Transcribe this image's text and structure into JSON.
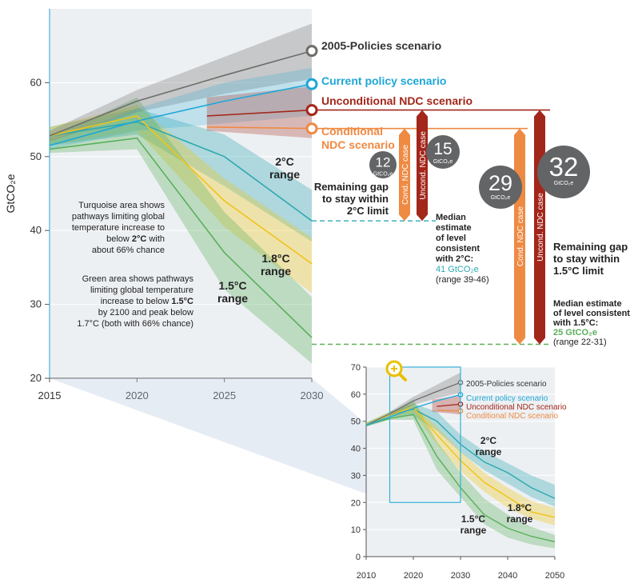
{
  "chart_data": [
    {
      "type": "area",
      "ylabel": "GtCO₂e",
      "xlim": [
        2015,
        2030
      ],
      "ylim": [
        20,
        70
      ],
      "x_ticks": [
        "2015",
        "2020",
        "2025",
        "2030"
      ],
      "y_ticks": [
        "20",
        "30",
        "40",
        "50",
        "60"
      ],
      "series": [
        {
          "name": "2005-Policies scenario",
          "x": [
            2015,
            2020,
            2025,
            2030
          ],
          "values": [
            52.8,
            57.5,
            61.0,
            64.3
          ],
          "band_low": [
            52.0,
            56.0,
            58.5,
            60.5
          ],
          "band_high": [
            53.5,
            59.0,
            63.5,
            68.0
          ],
          "color": "#6d6e6a"
        },
        {
          "name": "Current policy scenario",
          "x": [
            2015,
            2020,
            2025,
            2030
          ],
          "values": [
            51.5,
            54.8,
            57.5,
            59.8
          ],
          "band_low": [
            51.0,
            53.5,
            54.5,
            55.5
          ],
          "band_high": [
            52.0,
            56.5,
            60.0,
            62.0
          ],
          "color": "#1ea7d8"
        },
        {
          "name": "Unconditional NDC scenario",
          "x": [
            2024,
            2030
          ],
          "values": [
            55.5,
            56.3
          ],
          "band_low": [
            53.5,
            52.5
          ],
          "band_high": [
            58.0,
            59.5
          ],
          "color": "#a3261a"
        },
        {
          "name": "Conditional NDC scenario",
          "x": [
            2024,
            2030
          ],
          "values": [
            54.0,
            53.8
          ],
          "color": "#ef8a43"
        }
      ],
      "pathways": [
        {
          "name": "2°C range",
          "x": [
            2015,
            2020,
            2025,
            2030
          ],
          "values": [
            52.8,
            54.7,
            50.0,
            41.3
          ],
          "band_low": [
            51.5,
            53.0,
            46.0,
            38.5
          ],
          "band_high": [
            54.0,
            56.5,
            53.0,
            45.5
          ],
          "color": "#2ea8b0"
        },
        {
          "name": "1.8°C range",
          "x": [
            2015,
            2020,
            2025,
            2030
          ],
          "values": [
            52.8,
            55.5,
            44.0,
            35.5
          ],
          "band_low": [
            51.5,
            53.5,
            40.5,
            31.5
          ],
          "band_high": [
            54.0,
            57.0,
            47.0,
            39.0
          ],
          "color": "#f0c419"
        },
        {
          "name": "1.5°C range",
          "x": [
            2015,
            2020,
            2025,
            2030
          ],
          "values": [
            51.0,
            52.5,
            37.0,
            25.5
          ],
          "band_low": [
            50.5,
            51.0,
            32.0,
            22.0
          ],
          "band_high": [
            52.5,
            58.0,
            42.5,
            31.0
          ],
          "color": "#5aaf5b"
        }
      ],
      "annotations": {
        "two_c_range": "2°C\nrange",
        "one_eight_range": "1.8°C\nrange",
        "one_five_range": "1.5°C\nrange",
        "turquoise_note": [
          "Turquoise area shows",
          "pathways limiting global",
          "temperature increase to",
          "below ",
          "2°C",
          " with",
          "about 66% chance"
        ],
        "green_note": [
          "Green area shows pathways",
          "limiting global temperature",
          "increase to below ",
          "1.5°C",
          "by 2100 and peak below",
          "1.7°C (both with 66% chance)"
        ],
        "gap_2c": [
          "Remaining gap",
          "to stay within",
          "2°C limit"
        ],
        "gap_15c": [
          "Remaining gap",
          "to stay within",
          "1.5°C limit"
        ],
        "median_2c": [
          "Median",
          "estimate",
          "of level",
          "consistent",
          "with 2°C:",
          "41 GtCO₂e",
          "(range 39-46)"
        ],
        "median_15c": [
          "Median estimate",
          "of level consistent",
          "with 1.5°C:",
          "25 GtCO₂e",
          "(range 22-31)"
        ],
        "scenario_2005": "2005-Policies scenario",
        "scenario_current": "Current policy scenario",
        "scenario_uncond": "Unconditional NDC scenario",
        "scenario_cond": [
          "Conditional",
          "NDC scenario"
        ]
      },
      "gaps": [
        {
          "value": "12",
          "unit": "GtCO₂e",
          "bar": "Cond. NDC case",
          "limit": "2°C"
        },
        {
          "value": "15",
          "unit": "GtCO₂e",
          "bar": "Uncond. NDC case",
          "limit": "2°C"
        },
        {
          "value": "29",
          "unit": "GtCO₂e",
          "bar": "Cond. NDC case",
          "limit": "1.5°C"
        },
        {
          "value": "32",
          "unit": "GtCO₂e",
          "bar": "Uncond. NDC case",
          "limit": "1.5°C"
        }
      ],
      "colors": {
        "grey": "#6d6e6a",
        "current": "#1ea7d8",
        "uncond": "#a3261a",
        "cond": "#ef8a43",
        "two_c": "#2ea8b0",
        "one_eight": "#f0c419",
        "one_five": "#5aaf5b",
        "median_2c_text": "#2ea8b0",
        "median_15c_text": "#5aaf5b"
      }
    },
    {
      "type": "area",
      "xlim": [
        2010,
        2050
      ],
      "ylim": [
        0,
        70
      ],
      "x_ticks": [
        "2010",
        "2020",
        "2030",
        "2040",
        "2050"
      ],
      "y_ticks": [
        "0",
        "10",
        "20",
        "30",
        "40",
        "50",
        "60",
        "70"
      ],
      "series": [
        {
          "name": "2005-Policies scenario",
          "x": [
            2010,
            2015,
            2020,
            2025,
            2030
          ],
          "values": [
            48.5,
            52.8,
            57.5,
            61.0,
            64.3
          ]
        },
        {
          "name": "Current policy scenario",
          "x": [
            2010,
            2015,
            2020,
            2025,
            2030
          ],
          "values": [
            48.5,
            51.5,
            54.8,
            57.5,
            59.8
          ]
        },
        {
          "name": "Unconditional NDC scenario",
          "x": [
            2025,
            2030
          ],
          "values": [
            55.5,
            56.3
          ]
        },
        {
          "name": "Conditional NDC scenario",
          "x": [
            2025,
            2030
          ],
          "values": [
            54.0,
            53.8
          ]
        }
      ],
      "pathways": [
        {
          "name": "2°C range",
          "x": [
            2010,
            2015,
            2020,
            2025,
            2030,
            2035,
            2040,
            2045,
            2050
          ],
          "values": [
            48.5,
            52.5,
            54.5,
            50.0,
            41.5,
            35.0,
            31.0,
            25.5,
            21.5
          ],
          "band_low": [
            48.0,
            51.5,
            52.0,
            46.5,
            38.5,
            32.0,
            27.0,
            22.0,
            18.5
          ],
          "band_high": [
            49.5,
            53.5,
            56.5,
            53.5,
            45.0,
            39.0,
            34.5,
            30.0,
            26.5
          ]
        },
        {
          "name": "1.8°C range",
          "x": [
            2010,
            2015,
            2020,
            2025,
            2030,
            2035,
            2040,
            2045,
            2050
          ],
          "values": [
            48.5,
            52.5,
            55.0,
            45.0,
            35.5,
            27.5,
            22.0,
            16.5,
            14.5
          ],
          "band_low": [
            48.0,
            51.5,
            53.0,
            41.5,
            31.5,
            24.0,
            18.0,
            14.0,
            11.5
          ],
          "band_high": [
            49.5,
            53.5,
            56.5,
            48.0,
            39.0,
            31.0,
            25.5,
            20.5,
            18.0
          ]
        },
        {
          "name": "1.5°C range",
          "x": [
            2010,
            2015,
            2020,
            2025,
            2030,
            2035,
            2040,
            2045,
            2050
          ],
          "values": [
            48.5,
            51.0,
            52.5,
            37.0,
            25.5,
            15.5,
            10.5,
            7.5,
            5.5
          ],
          "band_low": [
            48.0,
            50.5,
            50.5,
            32.0,
            22.0,
            12.0,
            7.0,
            4.5,
            3.0
          ],
          "band_high": [
            49.5,
            52.5,
            58.0,
            42.5,
            31.0,
            21.5,
            15.5,
            11.0,
            8.0
          ]
        }
      ],
      "zoom_window": {
        "x": [
          2015,
          2030
        ],
        "y": [
          20,
          70
        ]
      },
      "annotations": {
        "two_c_range": "2°C\nrange",
        "one_eight_range": "1.8°C\nrange",
        "one_five_range": "1.5°C\nrange",
        "scenario_2005": "2005-Policies scenario",
        "scenario_current": "Current policy scenario",
        "scenario_uncond": "Unconditional NDC scenario",
        "scenario_cond": "Conditional NDC scenario"
      }
    }
  ]
}
